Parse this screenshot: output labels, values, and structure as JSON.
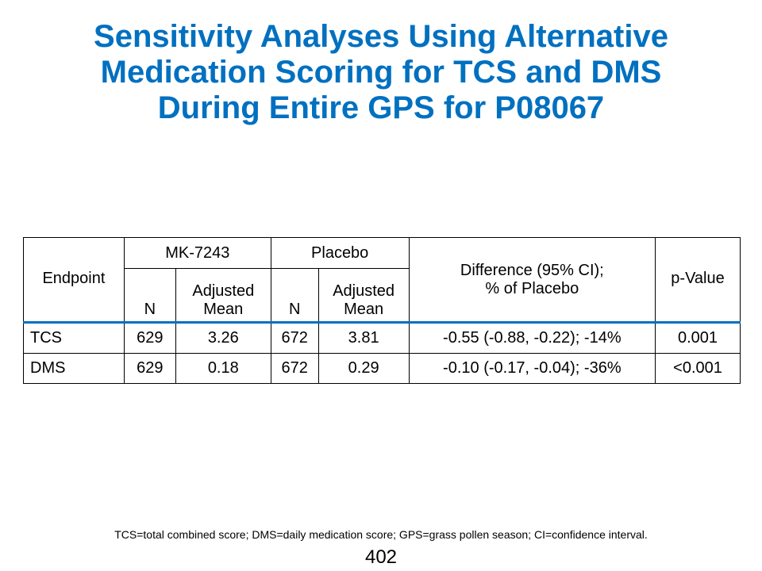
{
  "title": {
    "lines": [
      "Sensitivity Analyses Using Alternative",
      "Medication Scoring for TCS and DMS",
      "During Entire GPS for P08067"
    ]
  },
  "table": {
    "headers": {
      "endpoint": "Endpoint",
      "group_mk": "MK-7243",
      "group_placebo": "Placebo",
      "n": "N",
      "adjusted_mean_line1": "Adjusted",
      "adjusted_mean_line2": "Mean",
      "difference_line1": "Difference (95% CI);",
      "difference_line2": "% of Placebo",
      "pvalue": "p-Value"
    },
    "rows": [
      {
        "endpoint": "TCS",
        "mk_n": "629",
        "mk_mean": "3.26",
        "placebo_n": "672",
        "placebo_mean": "3.81",
        "difference": "-0.55 (-0.88, -0.22); -14%",
        "pvalue": "0.001"
      },
      {
        "endpoint": "DMS",
        "mk_n": "629",
        "mk_mean": "0.18",
        "placebo_n": "672",
        "placebo_mean": "0.29",
        "difference": "-0.10 (-0.17, -0.04); -36%",
        "pvalue": "<0.001"
      }
    ]
  },
  "footnote": "TCS=total combined score; DMS=daily medication score; GPS=grass pollen season; CI=confidence interval.",
  "page_number": "402",
  "colors": {
    "title": "#0070C0",
    "header_rule": "#0070C0",
    "text": "#000000"
  }
}
